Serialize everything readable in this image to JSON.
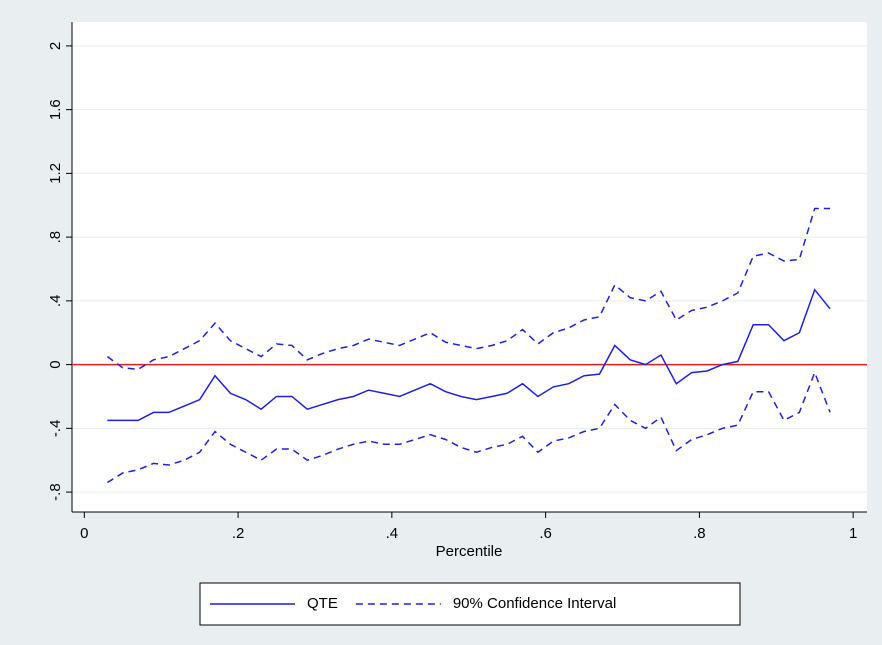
{
  "chart_data": {
    "type": "line",
    "x_label": "Percentile",
    "x": [
      0.03,
      0.05,
      0.07,
      0.09,
      0.11,
      0.13,
      0.15,
      0.17,
      0.19,
      0.21,
      0.23,
      0.25,
      0.27,
      0.29,
      0.31,
      0.33,
      0.35,
      0.37,
      0.39,
      0.41,
      0.43,
      0.45,
      0.47,
      0.49,
      0.51,
      0.53,
      0.55,
      0.57,
      0.59,
      0.61,
      0.63,
      0.65,
      0.67,
      0.69,
      0.71,
      0.73,
      0.75,
      0.77,
      0.79,
      0.81,
      0.83,
      0.85,
      0.87,
      0.89,
      0.91,
      0.93,
      0.95,
      0.97
    ],
    "series": [
      {
        "name": "QTE",
        "color": "#1f1fe0",
        "dash": false,
        "values": [
          -0.35,
          -0.35,
          -0.35,
          -0.3,
          -0.3,
          -0.26,
          -0.22,
          -0.07,
          -0.18,
          -0.22,
          -0.28,
          -0.2,
          -0.2,
          -0.28,
          -0.25,
          -0.22,
          -0.2,
          -0.16,
          -0.18,
          -0.2,
          -0.16,
          -0.12,
          -0.17,
          -0.2,
          -0.22,
          -0.2,
          -0.18,
          -0.12,
          -0.2,
          -0.14,
          -0.12,
          -0.07,
          -0.06,
          0.12,
          0.03,
          0.0,
          0.06,
          -0.12,
          -0.05,
          -0.04,
          0.0,
          0.02,
          0.25,
          0.25,
          0.15,
          0.2,
          0.47,
          0.35
        ]
      },
      {
        "name": "90% Confidence Interval",
        "color": "#1f1fe0",
        "dash": true,
        "upper": [
          0.05,
          -0.02,
          -0.03,
          0.03,
          0.05,
          0.1,
          0.15,
          0.26,
          0.15,
          0.1,
          0.05,
          0.13,
          0.12,
          0.03,
          0.07,
          0.1,
          0.12,
          0.16,
          0.14,
          0.12,
          0.16,
          0.2,
          0.14,
          0.12,
          0.1,
          0.12,
          0.15,
          0.22,
          0.13,
          0.2,
          0.23,
          0.28,
          0.3,
          0.5,
          0.42,
          0.4,
          0.46,
          0.28,
          0.34,
          0.36,
          0.4,
          0.45,
          0.68,
          0.7,
          0.65,
          0.66,
          0.98,
          0.98
        ],
        "lower": [
          -0.74,
          -0.68,
          -0.66,
          -0.62,
          -0.63,
          -0.6,
          -0.55,
          -0.42,
          -0.5,
          -0.55,
          -0.6,
          -0.53,
          -0.53,
          -0.6,
          -0.57,
          -0.53,
          -0.5,
          -0.48,
          -0.5,
          -0.5,
          -0.47,
          -0.44,
          -0.47,
          -0.52,
          -0.55,
          -0.52,
          -0.5,
          -0.45,
          -0.55,
          -0.48,
          -0.46,
          -0.42,
          -0.4,
          -0.25,
          -0.35,
          -0.4,
          -0.33,
          -0.54,
          -0.47,
          -0.44,
          -0.4,
          -0.38,
          -0.17,
          -0.17,
          -0.35,
          -0.3,
          -0.05,
          -0.3
        ]
      }
    ],
    "hline": {
      "value": 0,
      "color": "#e02020"
    },
    "xlim": [
      -0.016,
      1.018
    ],
    "xticks": [
      0,
      {
        "value": 0.2,
        "label": ".2"
      },
      {
        "value": 0.4,
        "label": ".4"
      },
      {
        "value": 0.6,
        "label": ".6"
      },
      {
        "value": 0.8,
        "label": ".8"
      },
      1
    ],
    "ylim": [
      -0.925,
      2.15
    ],
    "yticks": [
      {
        "value": -0.8,
        "label": "-.8"
      },
      {
        "value": -0.4,
        "label": "-.4"
      },
      0,
      {
        "value": 0.4,
        "label": ".4"
      },
      {
        "value": 0.8,
        "label": ".8"
      },
      1.2,
      1.6,
      2
    ],
    "grid": true,
    "legend": "bottom"
  }
}
